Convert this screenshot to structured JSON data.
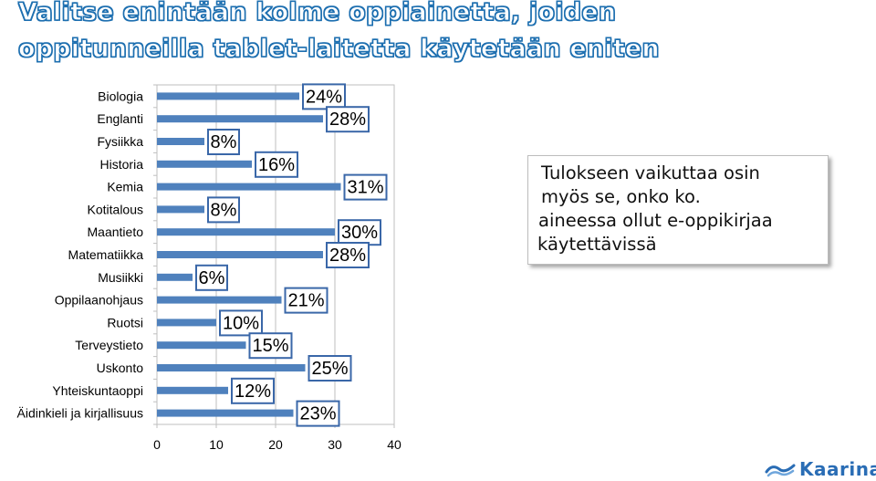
{
  "title": {
    "line1": "Valitse enintään kolme oppiainetta, joiden",
    "line2": "oppitunneilla tablet-laitetta käytetään eniten"
  },
  "note": {
    "lines": [
      "Tulokseen vaikuttaa osin",
      "myös se, onko ko.",
      "aineessa ollut e-oppikirjaa",
      "käytettävissä"
    ]
  },
  "logo": {
    "text": "Kaarina",
    "icon": "wave-logo-icon",
    "color": "#2a6db5"
  },
  "colors": {
    "bar": "#4f81bd",
    "label_border": "#3a67a8",
    "title_outline": "#1d6fb0"
  },
  "chart_data": {
    "type": "bar",
    "orientation": "horizontal",
    "categories": [
      "Biologia",
      "Englanti",
      "Fysiikka",
      "Historia",
      "Kemia",
      "Kotitalous",
      "Maantieto",
      "Matematiikka",
      "Musiikki",
      "Oppilaanohjaus",
      "Ruotsi",
      "Terveystieto",
      "Uskonto",
      "Yhteiskuntaoppi",
      "Äidinkieli ja kirjallisuus"
    ],
    "values": [
      24,
      28,
      8,
      16,
      31,
      8,
      30,
      28,
      6,
      21,
      10,
      15,
      25,
      12,
      23
    ],
    "data_labels": [
      "24%",
      "28%",
      "8%",
      "16%",
      "31%",
      "8%",
      "30%",
      "28%",
      "6%",
      "21%",
      "10%",
      "15%",
      "25%",
      "12%",
      "23%"
    ],
    "xlim": [
      0,
      40
    ],
    "xticks": [
      "0",
      "10",
      "20",
      "30",
      "40"
    ],
    "grid": true,
    "legend": "none"
  }
}
